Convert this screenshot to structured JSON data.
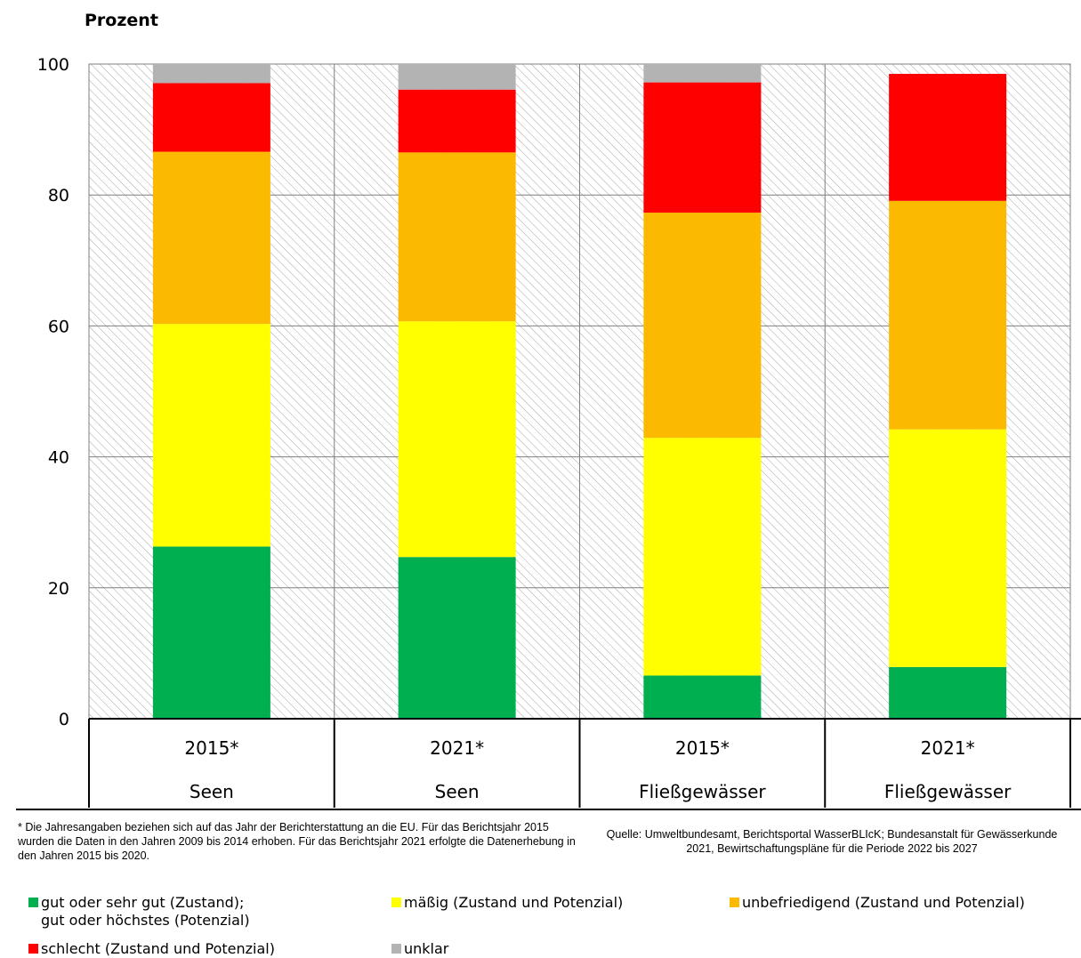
{
  "chart_data": {
    "type": "bar",
    "stacked": true,
    "ylabel": "Prozent",
    "ylim": [
      0,
      100
    ],
    "yticks": [
      0,
      20,
      40,
      60,
      80,
      100
    ],
    "grid": true,
    "categories": [
      {
        "year": "2015*",
        "group": "Seen"
      },
      {
        "year": "2021*",
        "group": "Seen"
      },
      {
        "year": "2015*",
        "group": "Fließgewässer"
      },
      {
        "year": "2021*",
        "group": "Fließgewässer"
      }
    ],
    "series": [
      {
        "key": "gut",
        "color": "#00b050",
        "values": [
          26.3,
          24.7,
          6.6,
          7.9
        ]
      },
      {
        "key": "maessig",
        "color": "#ffff00",
        "values": [
          34.0,
          36.0,
          36.3,
          36.3
        ]
      },
      {
        "key": "unbefriedigend",
        "color": "#fbb900",
        "values": [
          26.3,
          25.8,
          34.4,
          34.9
        ]
      },
      {
        "key": "schlecht",
        "color": "#ff0000",
        "values": [
          10.5,
          9.6,
          19.9,
          19.4
        ]
      },
      {
        "key": "unklar",
        "color": "#b3b3b3",
        "values": [
          2.9,
          3.9,
          2.8,
          0
        ]
      }
    ],
    "legend": [
      {
        "color": "#00b050",
        "line1": "gut oder sehr gut (Zustand);",
        "line2": "gut oder höchstes (Potenzial)"
      },
      {
        "color": "#ffff00",
        "line1": "mäßig (Zustand und Potenzial)",
        "line2": ""
      },
      {
        "color": "#fbb900",
        "line1": "unbefriedigend (Zustand und Potenzial)",
        "line2": ""
      },
      {
        "color": "#ff0000",
        "line1": "schlecht (Zustand und Potenzial)",
        "line2": ""
      },
      {
        "color": "#b3b3b3",
        "line1": "unklar",
        "line2": ""
      }
    ],
    "legend_placement": "bottom",
    "footnote": "* Die Jahresangaben beziehen sich auf das Jahr der Berichterstattung an die EU. Für das Berichtsjahr 2015 wurden die Daten in den Jahren 2009 bis 2014 erhoben. Für das Berichtsjahr 2021 erfolgte die Datenerhebung in den Jahren 2015 bis 2020.",
    "source": "Quelle: Umweltbundesamt, Berichtsportal WasserBLIcK; Bundesanstalt für Gewässerkunde 2021, Bewirtschaftungspläne für die Periode 2022 bis 2027"
  }
}
